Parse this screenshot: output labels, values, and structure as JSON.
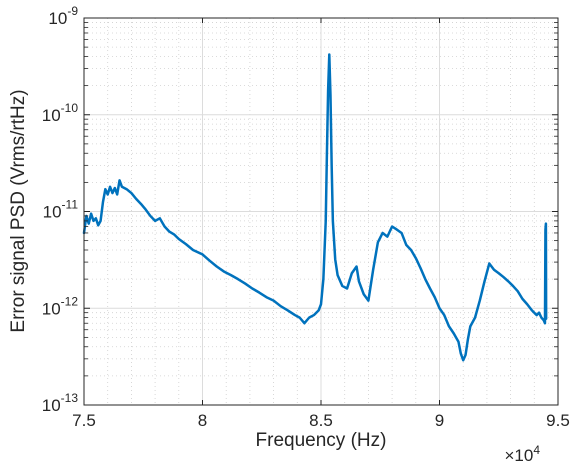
{
  "chart_data": {
    "type": "line",
    "title": "",
    "xlabel": "Frequency (Hz)",
    "ylabel": "Error signal PSD (Vrms/rtHz)",
    "x_exponent_label": "×10",
    "x_exponent_power": "4",
    "x_scale_factor": 10000,
    "xlim": [
      75000,
      95000
    ],
    "ylim": [
      1e-13,
      1e-09
    ],
    "yscale": "log",
    "grid": true,
    "minor_grid": true,
    "line_color": "#0072BD",
    "x_ticks": [
      {
        "value": 75000,
        "label": "7.5"
      },
      {
        "value": 80000,
        "label": "8"
      },
      {
        "value": 85000,
        "label": "8.5"
      },
      {
        "value": 90000,
        "label": "9"
      },
      {
        "value": 95000,
        "label": "9.5"
      }
    ],
    "y_ticks": [
      {
        "value": 1e-13,
        "base": "10",
        "exp": "-13"
      },
      {
        "value": 1e-12,
        "base": "10",
        "exp": "-12"
      },
      {
        "value": 1e-11,
        "base": "10",
        "exp": "-11"
      },
      {
        "value": 1e-10,
        "base": "10",
        "exp": "-10"
      },
      {
        "value": 1e-09,
        "base": "10",
        "exp": "-9"
      }
    ],
    "series": [
      {
        "x": [
          75000,
          75100,
          75200,
          75300,
          75400,
          75500,
          75600,
          75700,
          75800,
          75900,
          76000,
          76100,
          76200,
          76300,
          76400,
          76500,
          76600,
          76800,
          77000,
          77200,
          77400,
          77600,
          77800,
          78000,
          78200,
          78400,
          78600,
          78800,
          79000,
          79300,
          79600,
          80000,
          80300,
          80600,
          80900,
          81200,
          81500,
          81800,
          82100,
          82400,
          82700,
          83000,
          83300,
          83600,
          83900,
          84100,
          84300,
          84500,
          84700,
          84900,
          85000,
          85100,
          85200,
          85250,
          85300,
          85350,
          85400,
          85450,
          85500,
          85600,
          85700,
          85900,
          86100,
          86300,
          86500,
          86600,
          86800,
          87000,
          87200,
          87400,
          87600,
          87800,
          88000,
          88200,
          88400,
          88600,
          88800,
          89000,
          89200,
          89400,
          89600,
          89800,
          90000,
          90200,
          90400,
          90600,
          90800,
          90900,
          91000,
          91100,
          91200,
          91300,
          91500,
          91700,
          91900,
          92100,
          92300,
          92500,
          92700,
          92900,
          93100,
          93300,
          93500,
          93700,
          93900,
          94100,
          94200,
          94300,
          94400,
          94450,
          94470,
          94490,
          94500
        ],
        "y": [
          6e-12,
          9e-12,
          7.5e-12,
          9.5e-12,
          8e-12,
          8.5e-12,
          7.2e-12,
          8e-12,
          1.25e-11,
          1.7e-11,
          1.5e-11,
          1.8e-11,
          1.55e-11,
          1.75e-11,
          1.5e-11,
          2.1e-11,
          1.8e-11,
          1.7e-11,
          1.55e-11,
          1.35e-11,
          1.2e-11,
          1.05e-11,
          9e-12,
          8e-12,
          8.5e-12,
          7e-12,
          6.2e-12,
          5.8e-12,
          5.2e-12,
          4.6e-12,
          4e-12,
          3.6e-12,
          3.1e-12,
          2.7e-12,
          2.4e-12,
          2.2e-12,
          2e-12,
          1.8e-12,
          1.6e-12,
          1.45e-12,
          1.3e-12,
          1.2e-12,
          1.05e-12,
          9.5e-13,
          8.5e-13,
          8e-13,
          7e-13,
          8e-13,
          8.5e-13,
          9.5e-13,
          1.1e-12,
          2e-12,
          8e-12,
          4e-11,
          1.8e-10,
          4.2e-10,
          1.6e-10,
          3e-11,
          8e-12,
          3.2e-12,
          2.2e-12,
          1.7e-12,
          1.6e-12,
          2.3e-12,
          2.7e-12,
          1.9e-12,
          1.4e-12,
          1.2e-12,
          2.5e-12,
          4.8e-12,
          6e-12,
          5.5e-12,
          7e-12,
          6.5e-12,
          6e-12,
          4.5e-12,
          4e-12,
          3.3e-12,
          2.6e-12,
          2e-12,
          1.6e-12,
          1.3e-12,
          1e-12,
          8.5e-13,
          6.5e-13,
          5.5e-13,
          4.5e-13,
          3.4e-13,
          2.9e-13,
          3.3e-13,
          4.8e-13,
          6.5e-13,
          8e-13,
          1.2e-12,
          1.9e-12,
          2.9e-12,
          2.5e-12,
          2.3e-12,
          2.1e-12,
          1.9e-12,
          1.7e-12,
          1.5e-12,
          1.25e-12,
          1.1e-12,
          9.5e-13,
          8.5e-13,
          9e-13,
          8e-13,
          7.5e-13,
          7e-13,
          6.5e-12,
          7.5e-12,
          7.8e-13
        ]
      }
    ]
  }
}
